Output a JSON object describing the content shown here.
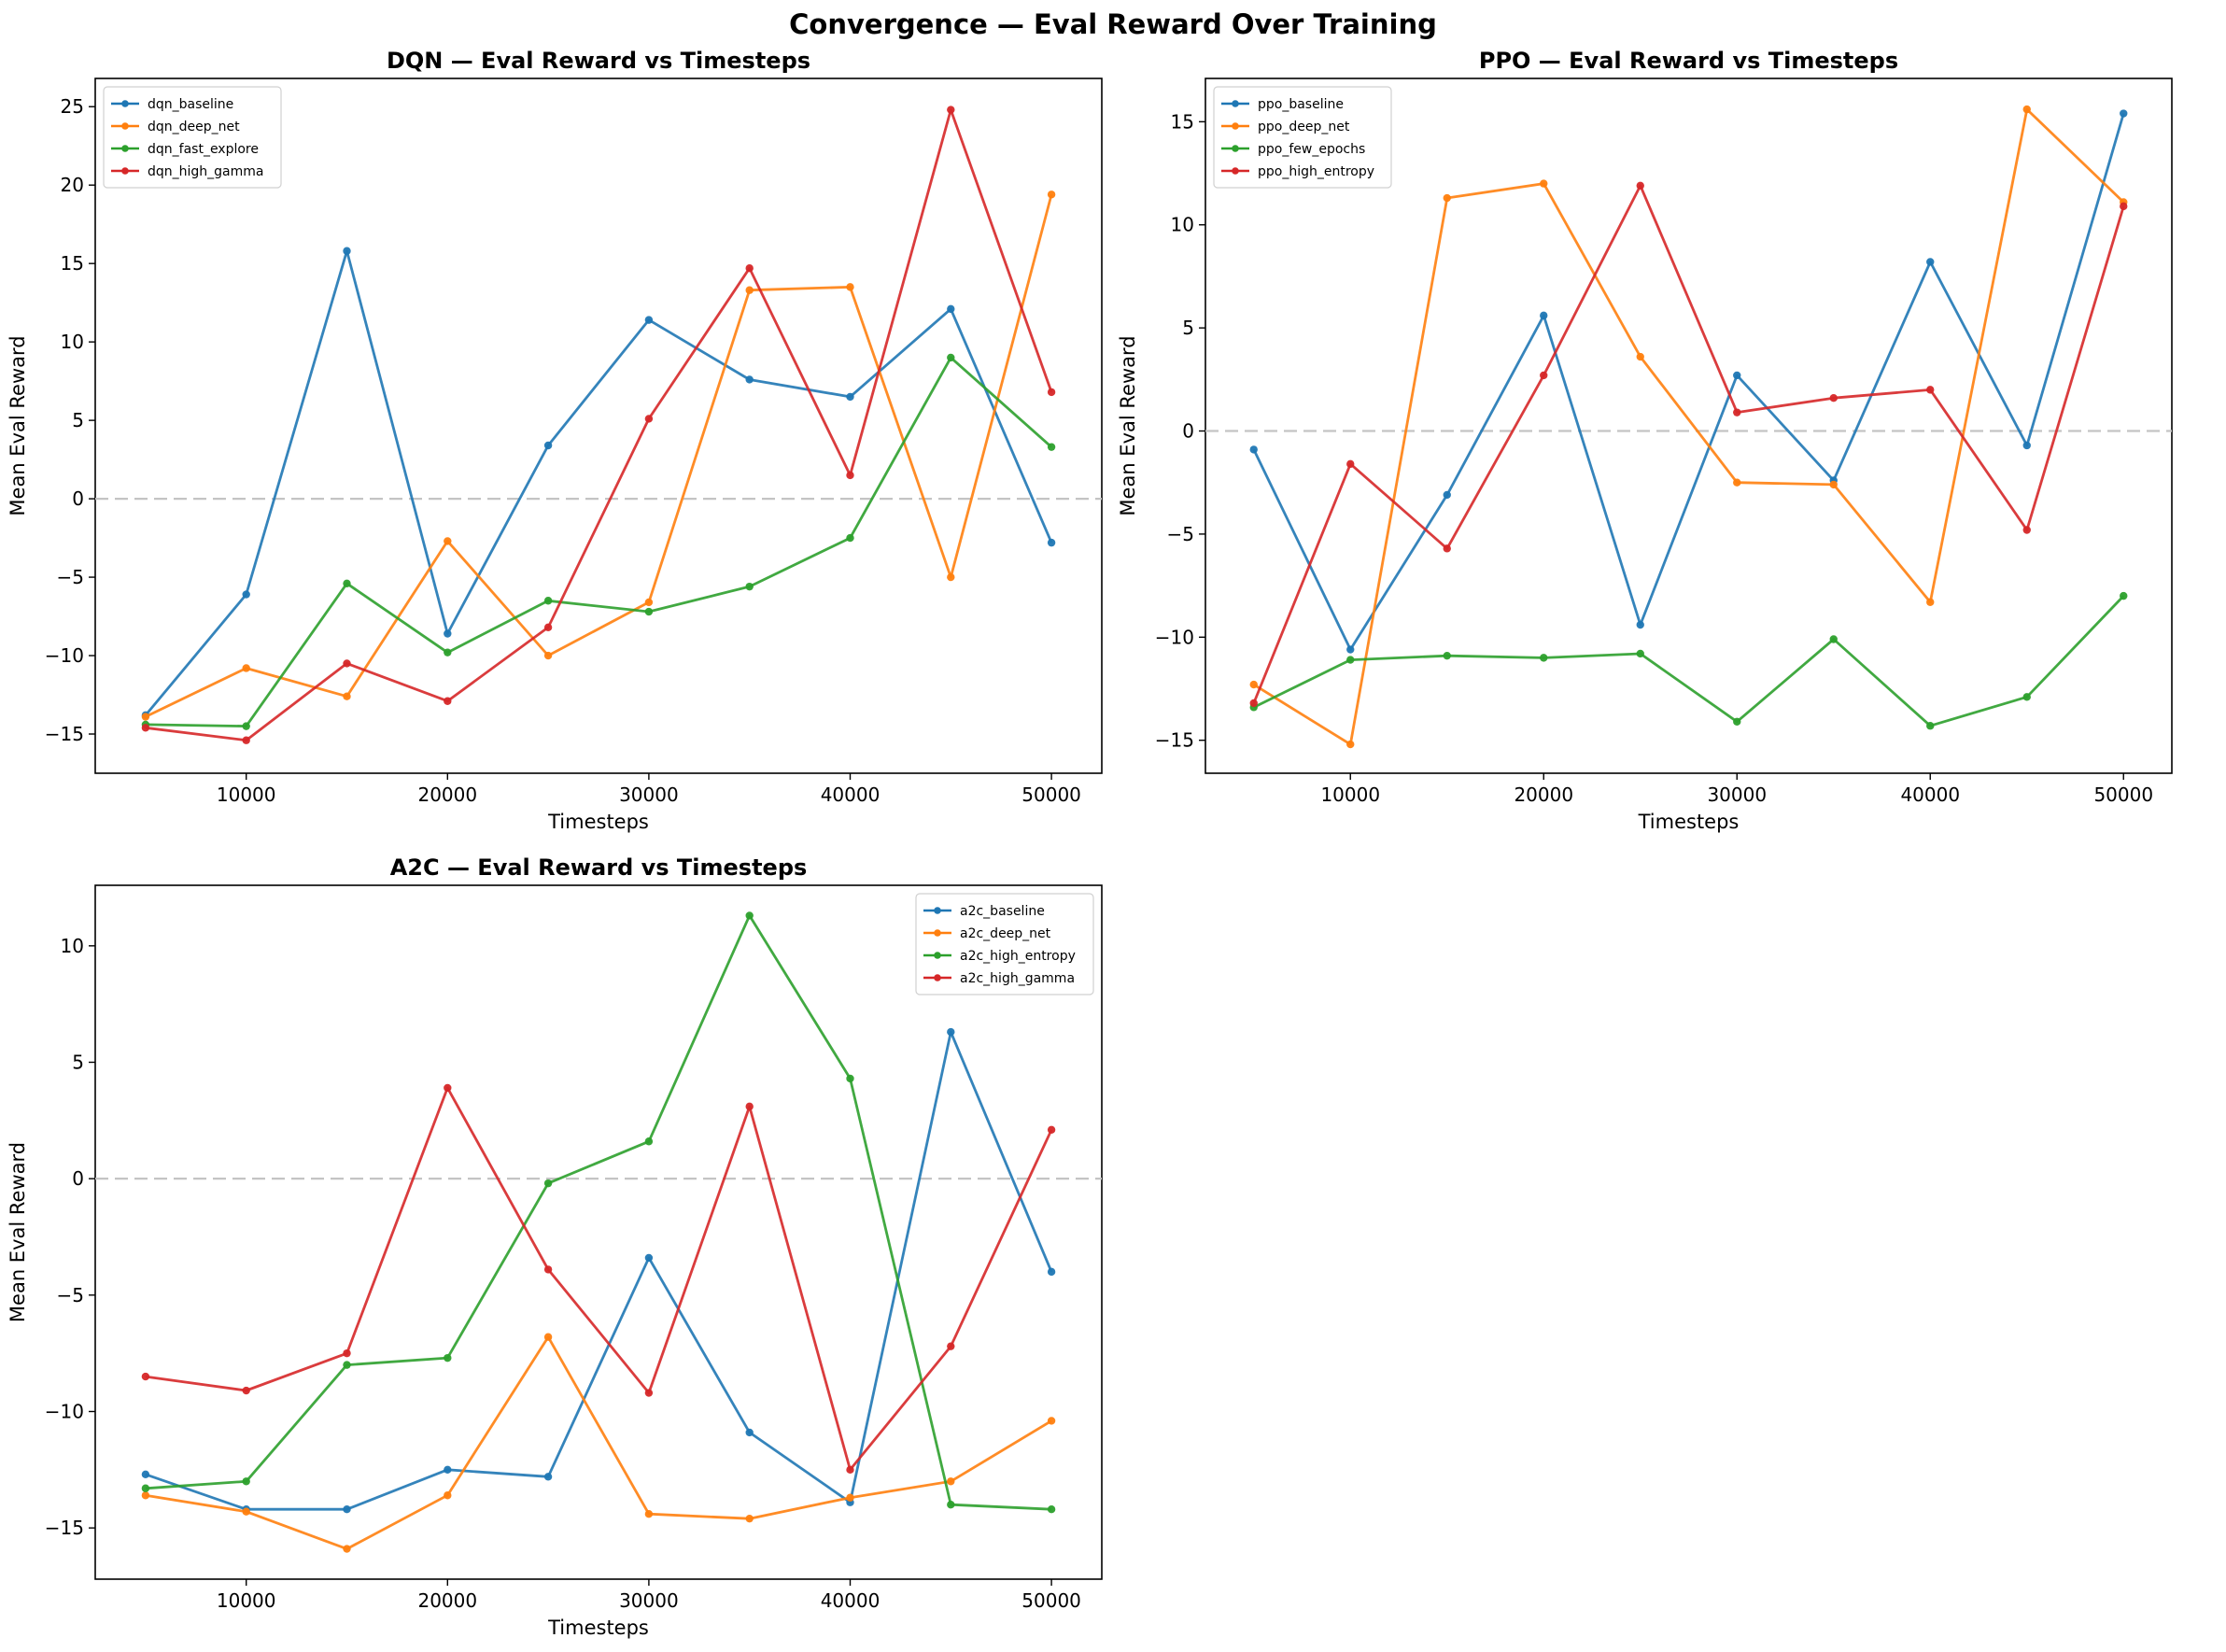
{
  "figure_title": "Convergence — Eval Reward Over Training",
  "chart_data": [
    {
      "type": "line",
      "title": "DQN — Eval Reward vs Timesteps",
      "xlabel": "Timesteps",
      "ylabel": "Mean Eval Reward",
      "x": [
        5000,
        10000,
        15000,
        20000,
        25000,
        30000,
        35000,
        40000,
        45000,
        50000
      ],
      "xlim": [
        2500,
        52500
      ],
      "ylim": [
        -17.5,
        26.8
      ],
      "xticks": [
        10000,
        20000,
        30000,
        40000,
        50000
      ],
      "xtick_labels": [
        "10000",
        "20000",
        "30000",
        "40000",
        "50000"
      ],
      "yticks": [
        -15,
        -10,
        -5,
        0,
        5,
        10,
        15,
        20,
        25
      ],
      "ytick_labels": [
        "−15",
        "−10",
        "−5",
        "0",
        "5",
        "10",
        "15",
        "20",
        "25"
      ],
      "legend_position": "upper left",
      "zero_line": true,
      "series": [
        {
          "name": "dqn_baseline",
          "color": "#1f77b4",
          "values": [
            -13.8,
            -6.1,
            15.8,
            -8.6,
            3.4,
            11.4,
            7.6,
            6.5,
            12.1,
            -2.8
          ]
        },
        {
          "name": "dqn_deep_net",
          "color": "#ff7f0e",
          "values": [
            -13.9,
            -10.8,
            -12.6,
            -2.7,
            -10.0,
            -6.6,
            13.3,
            13.5,
            -5.0,
            19.4
          ]
        },
        {
          "name": "dqn_fast_explore",
          "color": "#2ca02c",
          "values": [
            -14.4,
            -14.5,
            -5.4,
            -9.8,
            -6.5,
            -7.2,
            -5.6,
            -2.5,
            9.0,
            3.3
          ]
        },
        {
          "name": "dqn_high_gamma",
          "color": "#d62728",
          "values": [
            -14.6,
            -15.4,
            -10.5,
            -12.9,
            -8.2,
            5.1,
            14.7,
            1.5,
            24.8,
            6.8
          ]
        }
      ]
    },
    {
      "type": "line",
      "title": "PPO — Eval Reward vs Timesteps",
      "xlabel": "Timesteps",
      "ylabel": "Mean Eval Reward",
      "x": [
        5000,
        10000,
        15000,
        20000,
        25000,
        30000,
        35000,
        40000,
        45000,
        50000
      ],
      "xlim": [
        2500,
        52500
      ],
      "ylim": [
        -16.6,
        17.1
      ],
      "xticks": [
        10000,
        20000,
        30000,
        40000,
        50000
      ],
      "xtick_labels": [
        "10000",
        "20000",
        "30000",
        "40000",
        "50000"
      ],
      "yticks": [
        -15,
        -10,
        -5,
        0,
        5,
        10,
        15
      ],
      "ytick_labels": [
        "−15",
        "−10",
        "−5",
        "0",
        "5",
        "10",
        "15"
      ],
      "legend_position": "upper left",
      "zero_line": true,
      "series": [
        {
          "name": "ppo_baseline",
          "color": "#1f77b4",
          "values": [
            -0.9,
            -10.6,
            -3.1,
            5.6,
            -9.4,
            2.7,
            -2.4,
            8.2,
            -0.7,
            15.4
          ]
        },
        {
          "name": "ppo_deep_net",
          "color": "#ff7f0e",
          "values": [
            -12.3,
            -15.2,
            11.3,
            12.0,
            3.6,
            -2.5,
            -2.6,
            -8.3,
            15.6,
            11.1
          ]
        },
        {
          "name": "ppo_few_epochs",
          "color": "#2ca02c",
          "values": [
            -13.4,
            -11.1,
            -10.9,
            -11.0,
            -10.8,
            -14.1,
            -10.1,
            -14.3,
            -12.9,
            -8.0
          ]
        },
        {
          "name": "ppo_high_entropy",
          "color": "#d62728",
          "values": [
            -13.2,
            -1.6,
            -5.7,
            2.7,
            11.9,
            0.9,
            1.6,
            2.0,
            -4.8,
            10.9
          ]
        }
      ]
    },
    {
      "type": "line",
      "title": "A2C — Eval Reward vs Timesteps",
      "xlabel": "Timesteps",
      "ylabel": "Mean Eval Reward",
      "x": [
        5000,
        10000,
        15000,
        20000,
        25000,
        30000,
        35000,
        40000,
        45000,
        50000
      ],
      "xlim": [
        2500,
        52500
      ],
      "ylim": [
        -17.2,
        12.6
      ],
      "xticks": [
        10000,
        20000,
        30000,
        40000,
        50000
      ],
      "xtick_labels": [
        "10000",
        "20000",
        "30000",
        "40000",
        "50000"
      ],
      "yticks": [
        -15,
        -10,
        -5,
        0,
        5,
        10
      ],
      "ytick_labels": [
        "−15",
        "−10",
        "−5",
        "0",
        "5",
        "10"
      ],
      "legend_position": "upper right",
      "zero_line": true,
      "series": [
        {
          "name": "a2c_baseline",
          "color": "#1f77b4",
          "values": [
            -12.7,
            -14.2,
            -14.2,
            -12.5,
            -12.8,
            -3.4,
            -10.9,
            -13.9,
            6.3,
            -4.0
          ]
        },
        {
          "name": "a2c_deep_net",
          "color": "#ff7f0e",
          "values": [
            -13.6,
            -14.3,
            -15.9,
            -13.6,
            -6.8,
            -14.4,
            -14.6,
            -13.7,
            -13.0,
            -10.4
          ]
        },
        {
          "name": "a2c_high_entropy",
          "color": "#2ca02c",
          "values": [
            -13.3,
            -13.0,
            -8.0,
            -7.7,
            -0.2,
            1.6,
            11.3,
            4.3,
            -14.0,
            -14.2
          ]
        },
        {
          "name": "a2c_high_gamma",
          "color": "#d62728",
          "values": [
            -8.5,
            -9.1,
            -7.5,
            3.9,
            -3.9,
            -9.2,
            3.1,
            -12.5,
            -7.2,
            2.1
          ]
        }
      ]
    }
  ]
}
